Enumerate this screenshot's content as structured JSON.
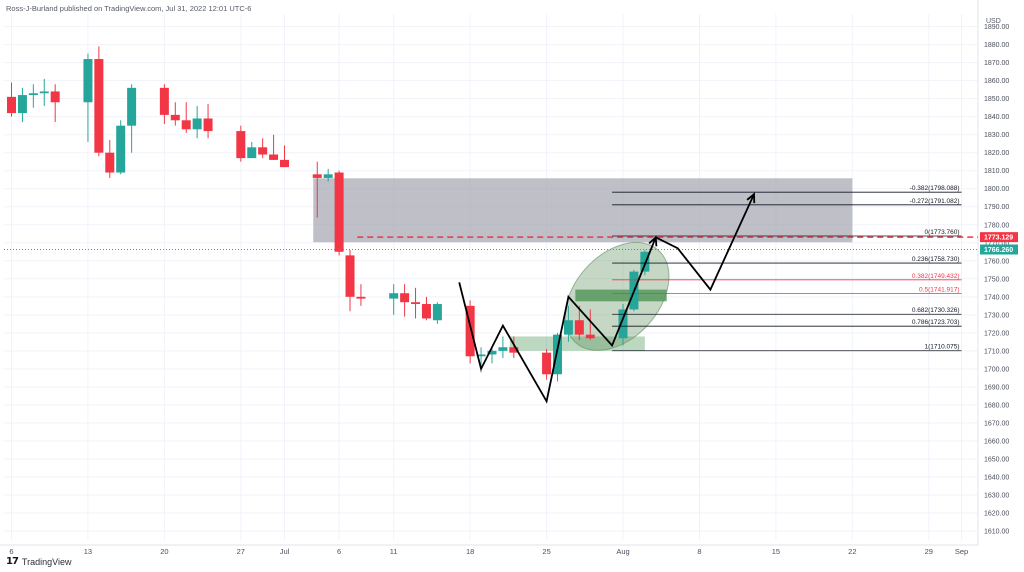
{
  "header": {
    "publisher_line": "Ross-J-Burland published on TradingView.com, Jul 31, 2022 12:01 UTC-6",
    "currency": "USD"
  },
  "footer": {
    "logo_icon": "tradingview-logo-icon",
    "brand": "TradingView"
  },
  "colors": {
    "up": "#26a69a",
    "down": "#f23645",
    "zone": "#a8a9b4",
    "green_zone": "#3f8f4a",
    "ellipse": "#5c8f5a",
    "resistance_line": "#f23645",
    "fib_red": "#f23645",
    "fib_black": "#131722",
    "last_price_bg": "#26a69a"
  },
  "chart_data": {
    "type": "candlestick",
    "instrument_currency": "USD",
    "y_ticks": [
      1610,
      1620,
      1630,
      1640,
      1650,
      1660,
      1670,
      1680,
      1690,
      1700,
      1710,
      1720,
      1730,
      1740,
      1750,
      1760,
      1770,
      1780,
      1790,
      1800,
      1810,
      1820,
      1830,
      1840,
      1850,
      1860,
      1870,
      1880,
      1890
    ],
    "ylim": [
      1605,
      1897
    ],
    "x_tick_labels": [
      {
        "label": "6",
        "day": 0
      },
      {
        "label": "13",
        "day": 7
      },
      {
        "label": "20",
        "day": 14
      },
      {
        "label": "27",
        "day": 21
      },
      {
        "label": "Jul",
        "day": 25
      },
      {
        "label": "6",
        "day": 30
      },
      {
        "label": "11",
        "day": 35
      },
      {
        "label": "18",
        "day": 42
      },
      {
        "label": "25",
        "day": 49
      },
      {
        "label": "Aug",
        "day": 56
      },
      {
        "label": "8",
        "day": 63
      },
      {
        "label": "15",
        "day": 70
      },
      {
        "label": "22",
        "day": 77
      },
      {
        "label": "29",
        "day": 84
      },
      {
        "label": "Sep",
        "day": 87
      }
    ],
    "candles": [
      {
        "d": 0,
        "o": 1851,
        "h": 1859,
        "l": 1840,
        "c": 1842
      },
      {
        "d": 1,
        "o": 1842,
        "h": 1856,
        "l": 1837,
        "c": 1852
      },
      {
        "d": 2,
        "o": 1852,
        "h": 1858,
        "l": 1845,
        "c": 1853
      },
      {
        "d": 3,
        "o": 1853,
        "h": 1861,
        "l": 1846,
        "c": 1854
      },
      {
        "d": 4,
        "o": 1854,
        "h": 1858,
        "l": 1837,
        "c": 1848
      },
      {
        "d": 7,
        "o": 1848,
        "h": 1875,
        "l": 1826,
        "c": 1872
      },
      {
        "d": 8,
        "o": 1872,
        "h": 1879,
        "l": 1818,
        "c": 1820
      },
      {
        "d": 9,
        "o": 1820,
        "h": 1827,
        "l": 1806,
        "c": 1809
      },
      {
        "d": 10,
        "o": 1809,
        "h": 1838,
        "l": 1808,
        "c": 1835
      },
      {
        "d": 11,
        "o": 1835,
        "h": 1858,
        "l": 1820,
        "c": 1856
      },
      {
        "d": 14,
        "o": 1856,
        "h": 1858,
        "l": 1836,
        "c": 1841
      },
      {
        "d": 15,
        "o": 1841,
        "h": 1848,
        "l": 1835,
        "c": 1838
      },
      {
        "d": 16,
        "o": 1838,
        "h": 1848,
        "l": 1831,
        "c": 1833
      },
      {
        "d": 17,
        "o": 1833,
        "h": 1846,
        "l": 1828,
        "c": 1839
      },
      {
        "d": 18,
        "o": 1839,
        "h": 1847,
        "l": 1828,
        "c": 1832
      },
      {
        "d": 21,
        "o": 1832,
        "h": 1835,
        "l": 1815,
        "c": 1817
      },
      {
        "d": 22,
        "o": 1817,
        "h": 1826,
        "l": 1817,
        "c": 1823
      },
      {
        "d": 23,
        "o": 1823,
        "h": 1828,
        "l": 1817,
        "c": 1819
      },
      {
        "d": 24,
        "o": 1819,
        "h": 1830,
        "l": 1816,
        "c": 1816
      },
      {
        "d": 25,
        "o": 1816,
        "h": 1824,
        "l": 1812,
        "c": 1812
      },
      {
        "d": 28,
        "o": 1808,
        "h": 1815,
        "l": 1784,
        "c": 1806
      },
      {
        "d": 29,
        "o": 1806,
        "h": 1811,
        "l": 1804,
        "c": 1808
      },
      {
        "d": 30,
        "o": 1809,
        "h": 1810,
        "l": 1763,
        "c": 1765
      },
      {
        "d": 31,
        "o": 1763,
        "h": 1766,
        "l": 1732,
        "c": 1740
      },
      {
        "d": 32,
        "o": 1740,
        "h": 1747,
        "l": 1735,
        "c": 1739
      },
      {
        "d": 35,
        "o": 1739,
        "h": 1747,
        "l": 1730,
        "c": 1742
      },
      {
        "d": 36,
        "o": 1742,
        "h": 1747,
        "l": 1729,
        "c": 1737
      },
      {
        "d": 37,
        "o": 1737,
        "h": 1745,
        "l": 1728,
        "c": 1736
      },
      {
        "d": 38,
        "o": 1736,
        "h": 1740,
        "l": 1727,
        "c": 1728
      },
      {
        "d": 39,
        "o": 1727,
        "h": 1737,
        "l": 1725,
        "c": 1736
      },
      {
        "d": 42,
        "o": 1735,
        "h": 1738,
        "l": 1703,
        "c": 1707
      },
      {
        "d": 43,
        "o": 1707,
        "h": 1712,
        "l": 1698,
        "c": 1708
      },
      {
        "d": 44,
        "o": 1708,
        "h": 1711,
        "l": 1703,
        "c": 1710
      },
      {
        "d": 45,
        "o": 1710,
        "h": 1718,
        "l": 1706,
        "c": 1712
      },
      {
        "d": 46,
        "o": 1712,
        "h": 1718,
        "l": 1706,
        "c": 1709
      },
      {
        "d": 49,
        "o": 1709,
        "h": 1711,
        "l": 1694,
        "c": 1697
      },
      {
        "d": 50,
        "o": 1697,
        "h": 1720,
        "l": 1693,
        "c": 1719
      },
      {
        "d": 51,
        "o": 1719,
        "h": 1735,
        "l": 1715,
        "c": 1727
      },
      {
        "d": 52,
        "o": 1727,
        "h": 1735,
        "l": 1716,
        "c": 1719
      },
      {
        "d": 53,
        "o": 1719,
        "h": 1733,
        "l": 1716,
        "c": 1717
      },
      {
        "d": 56,
        "o": 1717,
        "h": 1736,
        "l": 1713,
        "c": 1733
      },
      {
        "d": 57,
        "o": 1733,
        "h": 1755,
        "l": 1732,
        "c": 1754
      },
      {
        "d": 58,
        "o": 1754,
        "h": 1766,
        "l": 1752,
        "c": 1765
      }
    ],
    "zones": [
      {
        "name": "resistance-zone",
        "from_day": 28,
        "to_day": 77,
        "low": 1770.3,
        "high": 1805.8,
        "color": "zone"
      },
      {
        "name": "green-support-zone",
        "from_day": 52,
        "to_day": 60,
        "low": 1737.5,
        "high": 1744,
        "color": "green_zone"
      },
      {
        "name": "lower-support-zone",
        "from_day": 46,
        "to_day": 58,
        "low": 1710,
        "high": 1718,
        "color": "green_zone"
      }
    ],
    "resistance_level": 1773.129,
    "fib_levels": [
      {
        "label": "-0.382(1798.088)",
        "value": 1798.088,
        "color": "black"
      },
      {
        "label": "-0.272(1791.082)",
        "value": 1791.082,
        "color": "black"
      },
      {
        "label": "0(1773.760)",
        "value": 1773.76,
        "color": "black"
      },
      {
        "label": "0.236(1758.730)",
        "value": 1758.73,
        "color": "black"
      },
      {
        "label": "0.382(1749.432)",
        "value": 1749.432,
        "color": "red"
      },
      {
        "label": "0.5(1741.917)",
        "value": 1741.917,
        "color": "red"
      },
      {
        "label": "0.682(1730.326)",
        "value": 1730.326,
        "color": "black"
      },
      {
        "label": "0.786(1723.703)",
        "value": 1723.703,
        "color": "black"
      },
      {
        "label": "1(1710.075)",
        "value": 1710.075,
        "color": "black"
      }
    ],
    "fib_from_day": 55,
    "fib_to_day": 87,
    "projection_path": [
      {
        "d": 41,
        "v": 1748
      },
      {
        "d": 43,
        "v": 1700
      },
      {
        "d": 45,
        "v": 1724
      },
      {
        "d": 49,
        "v": 1682
      },
      {
        "d": 51,
        "v": 1740
      },
      {
        "d": 55,
        "v": 1713
      },
      {
        "d": 59,
        "v": 1773
      },
      {
        "d": 61,
        "v": 1767
      },
      {
        "d": 64,
        "v": 1744
      },
      {
        "d": 68,
        "v": 1797
      }
    ],
    "ellipse": {
      "center_day": 56,
      "center_value": 1738,
      "note": "highlighted region"
    },
    "price_labels": [
      {
        "value": 1773.129,
        "text": "1773.129",
        "color": "down"
      },
      {
        "value": 1766.26,
        "text": "1766.260",
        "color": "up"
      }
    ]
  }
}
